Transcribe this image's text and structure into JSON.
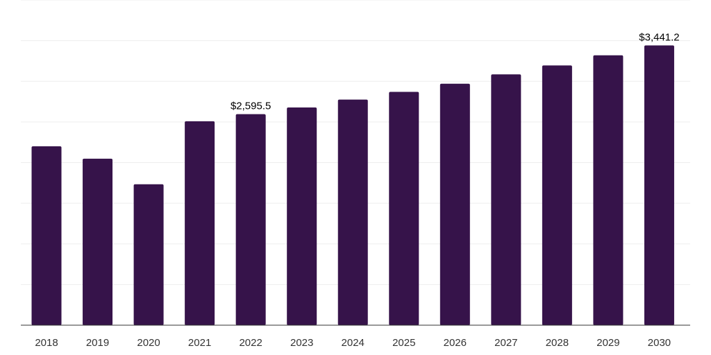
{
  "chart_data": {
    "type": "bar",
    "categories": [
      "2018",
      "2019",
      "2020",
      "2021",
      "2022",
      "2023",
      "2024",
      "2025",
      "2026",
      "2027",
      "2028",
      "2029",
      "2030"
    ],
    "values": [
      2200.0,
      2048.0,
      1733.0,
      2508.0,
      2595.5,
      2678.0,
      2775.0,
      2870.0,
      2970.0,
      3085.0,
      3195.0,
      3320.0,
      3441.2
    ],
    "data_labels": [
      {
        "index": 4,
        "text": "$2,595.5"
      },
      {
        "index": 12,
        "text": "$3,441.2"
      }
    ],
    "ylim": [
      0,
      4000
    ],
    "grid": true,
    "bar_color": "#36134a",
    "title": "",
    "xlabel": "",
    "ylabel": ""
  }
}
